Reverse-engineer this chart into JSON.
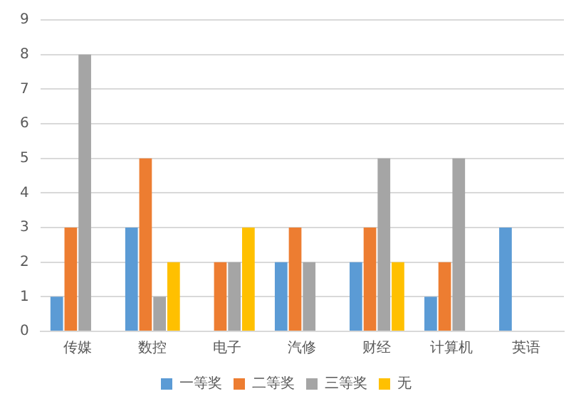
{
  "chart_data": {
    "type": "bar",
    "categories": [
      "传媒",
      "数控",
      "电子",
      "汽修",
      "财经",
      "计算机",
      "英语"
    ],
    "series": [
      {
        "name": "一等奖",
        "color": "#5b9bd5",
        "values": [
          1,
          3,
          0,
          2,
          2,
          1,
          3
        ]
      },
      {
        "name": "二等奖",
        "color": "#ed7d31",
        "values": [
          3,
          5,
          2,
          3,
          3,
          2,
          0
        ]
      },
      {
        "name": "三等奖",
        "color": "#a5a5a5",
        "values": [
          8,
          1,
          2,
          2,
          5,
          5,
          0
        ]
      },
      {
        "name": "无",
        "color": "#ffc000",
        "values": [
          0,
          2,
          3,
          0,
          2,
          0,
          0
        ]
      }
    ],
    "ylim": [
      0,
      9
    ],
    "yticks": [
      0,
      1,
      2,
      3,
      4,
      5,
      6,
      7,
      8,
      9
    ],
    "grid": "y",
    "legend": "bottom"
  }
}
